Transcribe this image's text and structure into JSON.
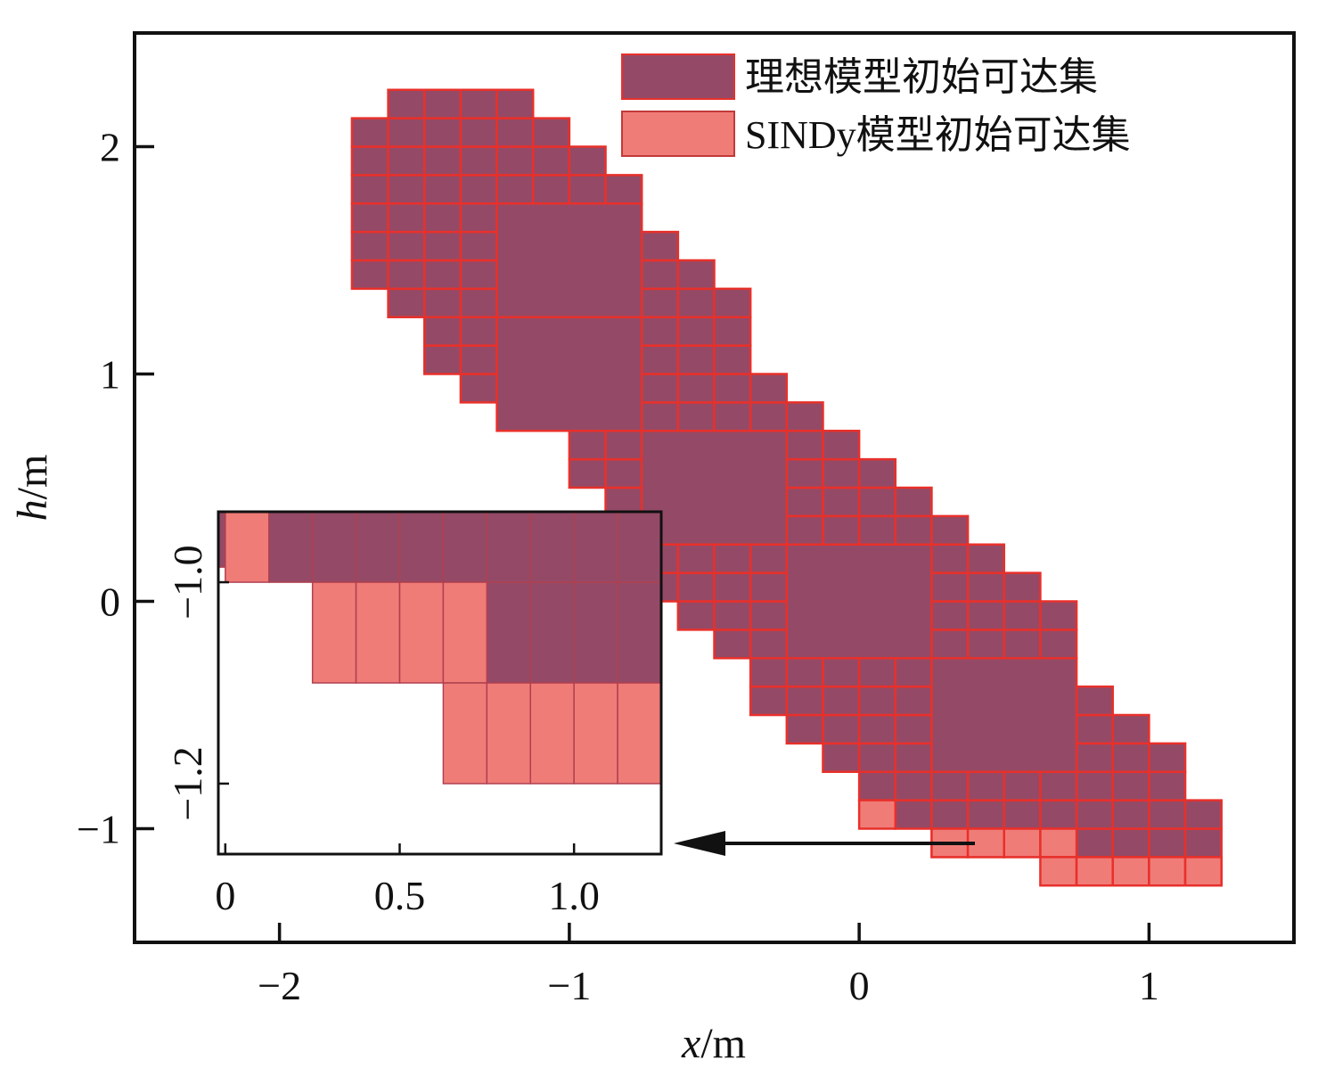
{
  "chart_data": {
    "type": "heatmap",
    "title": "",
    "xlabel": {
      "var": "x",
      "unit": "/m"
    },
    "ylabel": {
      "var": "h",
      "unit": "/m"
    },
    "xlim": [
      -2.5,
      1.5
    ],
    "ylim": [
      -1.5,
      2.5
    ],
    "xticks": [
      -2,
      -1,
      0,
      1
    ],
    "yticks": [
      -1,
      0,
      1,
      2
    ],
    "xtick_labels": [
      "−2",
      "−1",
      "0",
      "1"
    ],
    "ytick_labels": [
      "−1",
      "0",
      "1",
      "2"
    ],
    "cell_size": 0.125,
    "colors": {
      "ideal_fill": "#944a66",
      "sindy_fill": "#f07c78",
      "cell_edge": "#e8302b",
      "inset_edge": "#b04050",
      "axes": "#111111"
    },
    "legend": {
      "placement": "top-right",
      "entries": [
        {
          "label": "理想模型初始可达集",
          "series": "ideal"
        },
        {
          "label": "SINDy模型初始可达集",
          "series": "sindy"
        }
      ]
    },
    "series": [
      {
        "name": "理想模型初始可达集",
        "description_rows": "columns of 0.125 wide cells; each entry [x_start, n_cells, y_bottom, y_top]",
        "rows": [
          [
            -1.75,
            1,
            1.375,
            2.125
          ],
          [
            -1.625,
            1,
            1.25,
            2.25
          ],
          [
            -1.5,
            1,
            1.0,
            2.25
          ],
          [
            -1.375,
            1,
            0.875,
            2.25
          ],
          [
            -1.25,
            1,
            0.75,
            2.25
          ],
          [
            -1.125,
            1,
            0.75,
            2.125
          ],
          [
            -1.0,
            1,
            0.5,
            2.0
          ],
          [
            -0.875,
            1,
            0.25,
            1.875
          ],
          [
            -0.75,
            1,
            0.0,
            1.625
          ],
          [
            -0.625,
            1,
            -0.125,
            1.5
          ],
          [
            -0.5,
            1,
            -0.25,
            1.375
          ],
          [
            -0.375,
            1,
            -0.5,
            1.0
          ],
          [
            -0.25,
            1,
            -0.625,
            0.875
          ],
          [
            -0.125,
            1,
            -0.75,
            0.75
          ],
          [
            0.0,
            1,
            -0.875,
            0.625
          ],
          [
            0.125,
            1,
            -1.0,
            0.5
          ],
          [
            0.25,
            1,
            -1.125,
            0.375
          ],
          [
            0.375,
            1,
            -1.125,
            0.25
          ],
          [
            0.5,
            1,
            -1.125,
            0.125
          ],
          [
            0.625,
            1,
            -1.125,
            0.0
          ],
          [
            0.75,
            1,
            -1.25,
            -0.375
          ],
          [
            0.875,
            1,
            -1.25,
            -0.5
          ],
          [
            1.0,
            1,
            -1.25,
            -0.625
          ],
          [
            1.125,
            1,
            -1.25,
            -0.875
          ]
        ],
        "big_blocks": [
          [
            -1.25,
            1.25,
            0.5,
            0.5
          ],
          [
            -1.25,
            0.75,
            0.5,
            0.5
          ],
          [
            -0.75,
            0.25,
            0.5,
            0.5
          ],
          [
            -0.25,
            -0.25,
            0.5,
            0.5
          ],
          [
            0.25,
            -0.75,
            0.5,
            0.5
          ]
        ]
      },
      {
        "name": "SINDy模型初始可达集",
        "cells": [
          [
            0.0,
            -1.0
          ],
          [
            0.25,
            -1.125
          ],
          [
            0.375,
            -1.125
          ],
          [
            0.5,
            -1.125
          ],
          [
            0.625,
            -1.125
          ],
          [
            0.625,
            -1.25
          ],
          [
            0.75,
            -1.25
          ],
          [
            0.875,
            -1.25
          ],
          [
            1.0,
            -1.25
          ],
          [
            1.125,
            -1.25
          ]
        ]
      }
    ],
    "inset": {
      "xlim": [
        -0.02,
        1.25
      ],
      "ylim": [
        -1.27,
        -0.93
      ],
      "xticks": [
        0,
        0.5,
        1.0
      ],
      "yticks": [
        -1.0,
        -1.2
      ],
      "xtick_labels": [
        "0",
        "0.5",
        "1.0"
      ],
      "ytick_labels": [
        "−1.0",
        "−1.2"
      ],
      "cell_w": 0.125,
      "cell_h": 0.1,
      "ideal_cells": [
        [
          0,
          -0.95,
          8
        ],
        [
          0.125,
          -1.0,
          8
        ],
        [
          0.25,
          -1.0,
          8
        ],
        [
          0.375,
          -1.0,
          8
        ],
        [
          0.5,
          -1.0,
          8
        ],
        [
          0.625,
          -1.0,
          8
        ],
        [
          0.75,
          -1.0,
          8
        ],
        [
          0.875,
          -1.0,
          8
        ],
        [
          1.0,
          -1.0,
          8
        ],
        [
          1.125,
          -1.0,
          8
        ],
        [
          0.75,
          -1.1,
          8
        ],
        [
          0.875,
          -1.1,
          8
        ],
        [
          1.0,
          -1.1,
          8
        ],
        [
          1.125,
          -1.1,
          8
        ]
      ],
      "sindy_cells": [
        [
          0,
          -1.0
        ],
        [
          0.25,
          -1.1
        ],
        [
          0.375,
          -1.1
        ],
        [
          0.5,
          -1.1
        ],
        [
          0.625,
          -1.1
        ],
        [
          0.625,
          -1.2
        ],
        [
          0.75,
          -1.2
        ],
        [
          0.875,
          -1.2
        ],
        [
          1.0,
          -1.2
        ],
        [
          1.125,
          -1.2
        ]
      ]
    },
    "annotation": {
      "type": "arrow",
      "from_data": [
        0.4,
        -1.07
      ],
      "to": "inset"
    }
  }
}
